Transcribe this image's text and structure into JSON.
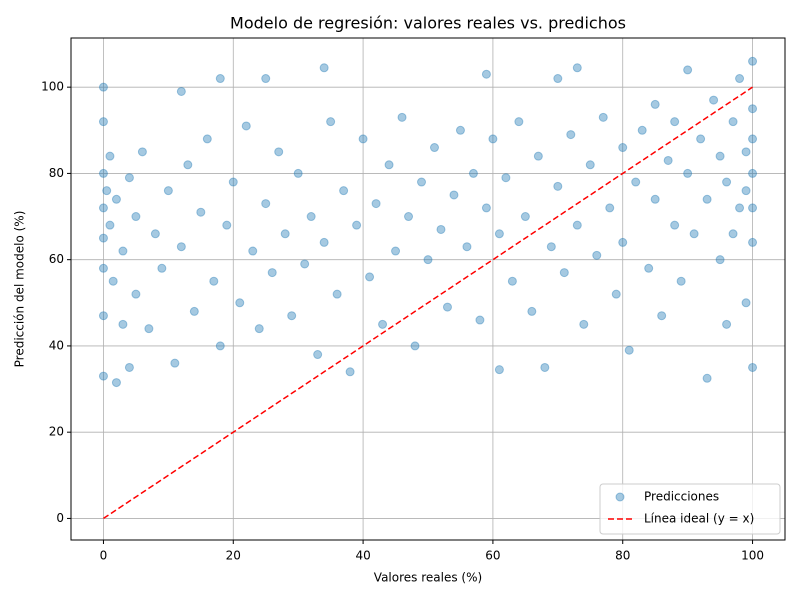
{
  "chart_data": {
    "type": "scatter",
    "title": "Modelo de regresión: valores reales vs. predichos",
    "x_label": "Valores reales (%)",
    "y_label": "Predicción del modelo (%)",
    "xlim": [
      -5,
      105
    ],
    "ylim": [
      -5,
      111.4
    ],
    "xticks": [
      0,
      20,
      40,
      60,
      80,
      100
    ],
    "yticks": [
      0,
      20,
      40,
      60,
      80,
      100
    ],
    "grid": true,
    "legend_position": "lower-right",
    "series": [
      {
        "name": "Predicciones",
        "type": "scatter",
        "color": "#1f77b4",
        "opacity": 0.4,
        "x": [
          0,
          0,
          0,
          0,
          0,
          0,
          0,
          0,
          0.5,
          1,
          1,
          1.5,
          2,
          2,
          3,
          3,
          4,
          4,
          5,
          5,
          6,
          7,
          8,
          9,
          10,
          11,
          12,
          12,
          13,
          14,
          15,
          16,
          17,
          18,
          18,
          19,
          20,
          21,
          22,
          23,
          24,
          25,
          25,
          26,
          27,
          28,
          29,
          30,
          31,
          32,
          33,
          34,
          34,
          35,
          36,
          37,
          38,
          39,
          40,
          41,
          42,
          43,
          44,
          45,
          46,
          47,
          48,
          49,
          50,
          51,
          52,
          53,
          54,
          55,
          56,
          57,
          58,
          59,
          59,
          60,
          61,
          61,
          62,
          63,
          64,
          65,
          66,
          67,
          68,
          69,
          70,
          70,
          71,
          72,
          73,
          73,
          74,
          75,
          76,
          77,
          78,
          79,
          80,
          80,
          81,
          82,
          83,
          84,
          85,
          85,
          86,
          87,
          88,
          88,
          89,
          90,
          90,
          91,
          92,
          93,
          93,
          94,
          95,
          95,
          96,
          96,
          97,
          97,
          98,
          98,
          99,
          99,
          99,
          100,
          100,
          100,
          100,
          100,
          100,
          100
        ],
        "values": [
          72,
          65,
          80,
          58,
          100,
          33,
          47,
          92,
          76,
          68,
          84,
          55,
          31.5,
          74,
          62,
          45,
          79,
          35,
          70,
          52,
          85,
          44,
          66,
          58,
          76,
          36,
          99,
          63,
          82,
          48,
          71,
          88,
          55,
          102,
          40,
          68,
          78,
          50,
          91,
          62,
          44,
          102,
          73,
          57,
          85,
          66,
          47,
          80,
          59,
          70,
          38,
          104.5,
          64,
          92,
          52,
          76,
          34,
          68,
          88,
          56,
          73,
          45,
          82,
          62,
          93,
          70,
          40,
          78,
          60,
          86,
          67,
          49,
          75,
          90,
          63,
          80,
          46,
          103,
          72,
          88,
          34.5,
          66,
          79,
          55,
          92,
          70,
          48,
          84,
          35,
          63,
          102,
          77,
          57,
          89,
          104.5,
          68,
          45,
          82,
          61,
          93,
          72,
          52,
          86,
          64,
          39,
          78,
          90,
          58,
          74,
          96,
          47,
          83,
          68,
          92,
          55,
          80,
          104,
          66,
          88,
          32.5,
          74,
          97,
          60,
          84,
          45,
          78,
          92,
          66,
          102,
          72,
          85,
          50,
          76,
          106,
          35,
          88,
          64,
          80,
          72,
          95
        ]
      },
      {
        "name": "Línea ideal (y = x)",
        "type": "line",
        "color": "#ff0000",
        "linestyle": "dashed",
        "x": [
          0,
          100
        ],
        "values": [
          0,
          100
        ]
      }
    ]
  }
}
